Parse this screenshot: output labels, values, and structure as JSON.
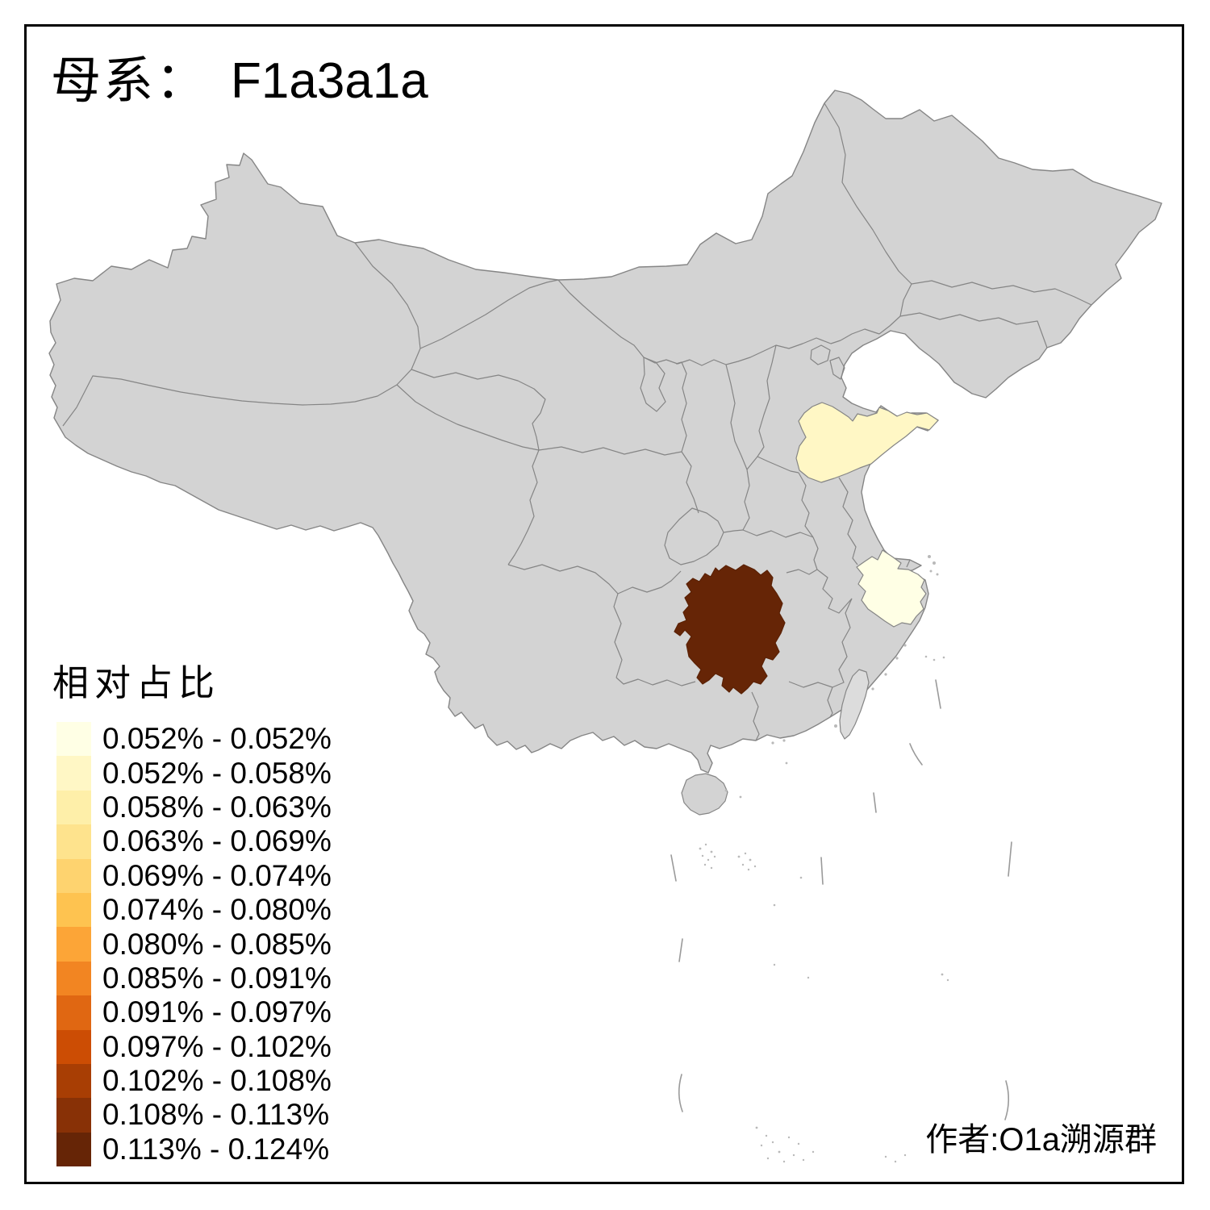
{
  "title": {
    "prefix": "母系：",
    "haplogroup": "F1a3a1a"
  },
  "legend": {
    "title": "相对占比",
    "items": [
      {
        "label": "0.052% - 0.052%",
        "color": "#FFFFE5"
      },
      {
        "label": "0.052% - 0.058%",
        "color": "#FFF7C5"
      },
      {
        "label": "0.058% - 0.063%",
        "color": "#FEEFA9"
      },
      {
        "label": "0.063% - 0.069%",
        "color": "#FEE38D"
      },
      {
        "label": "0.069% - 0.074%",
        "color": "#FED36F"
      },
      {
        "label": "0.074% - 0.080%",
        "color": "#FEC350"
      },
      {
        "label": "0.080% - 0.085%",
        "color": "#FCA537"
      },
      {
        "label": "0.085% - 0.091%",
        "color": "#F28522"
      },
      {
        "label": "0.091% - 0.097%",
        "color": "#E06712"
      },
      {
        "label": "0.097% - 0.102%",
        "color": "#CC4D04"
      },
      {
        "label": "0.102% - 0.108%",
        "color": "#A83E04"
      },
      {
        "label": "0.108% - 0.113%",
        "color": "#883106"
      },
      {
        "label": "0.113% - 0.124%",
        "color": "#662506"
      }
    ]
  },
  "author": "作者:O1a溯源群",
  "map": {
    "background": "#FFFFFF",
    "frame_color": "#000000",
    "base_fill": "#D3D3D3",
    "taiwan_fill": "#DCDCDC",
    "boundary_color": "#858585",
    "regions": {
      "hunan": {
        "range": "0.113% - 0.124%",
        "color": "#662506"
      },
      "shandong": {
        "range": "0.052% - 0.058%",
        "color": "#FFF7C5"
      },
      "zhejiang": {
        "range": "0.052% - 0.052%",
        "color": "#FFFFE5"
      }
    }
  },
  "chart_data": {
    "type": "choropleth",
    "title": "母系： F1a3a1a",
    "legend_title": "相对占比",
    "legend_position": "bottom-left",
    "classes": [
      "0.052% - 0.052%",
      "0.052% - 0.058%",
      "0.058% - 0.063%",
      "0.063% - 0.069%",
      "0.069% - 0.074%",
      "0.074% - 0.080%",
      "0.080% - 0.085%",
      "0.085% - 0.091%",
      "0.091% - 0.097%",
      "0.097% - 0.102%",
      "0.102% - 0.108%",
      "0.108% - 0.113%",
      "0.113% - 0.124%"
    ],
    "colored_regions": [
      {
        "region": "Hunan",
        "range": "0.113% - 0.124%"
      },
      {
        "region": "Shandong",
        "range": "0.052% - 0.058%"
      },
      {
        "region": "Zhejiang",
        "range": "0.052% - 0.052%"
      }
    ],
    "uncolored_region_fill": "gray (no data)"
  }
}
